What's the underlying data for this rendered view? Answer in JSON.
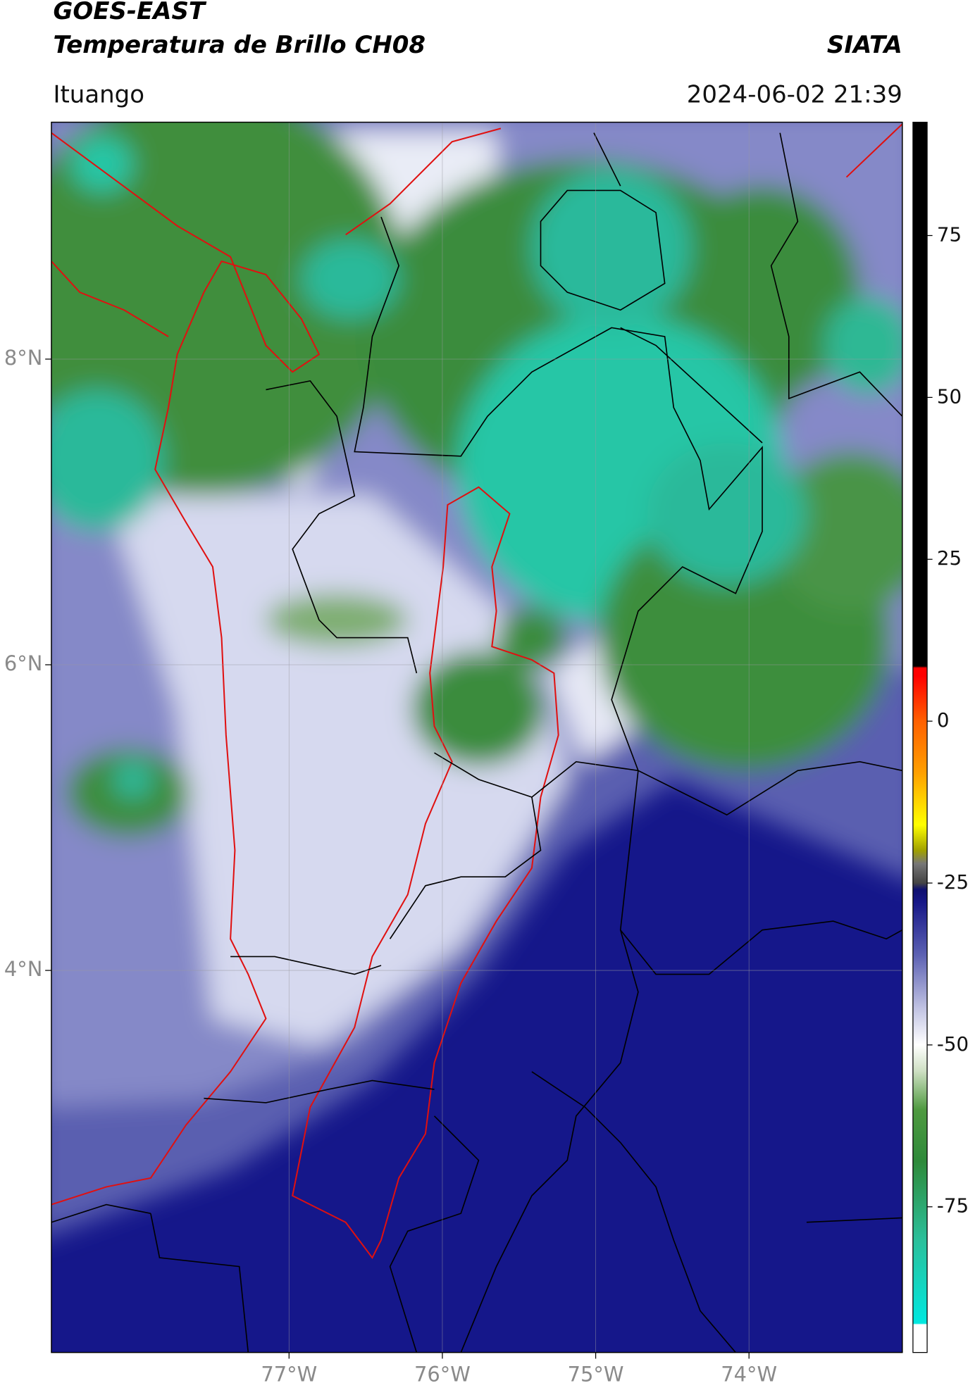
{
  "header": {
    "title": "GOES-EAST",
    "subtitle": "Temperatura de Brillo CH08",
    "brand": "SIATA",
    "location": "Ituango",
    "timestamp": "2024-06-02 21:39"
  },
  "map": {
    "lon_range": [
      -78.55,
      -73.0
    ],
    "lat_range": [
      1.5,
      9.55
    ],
    "lon_ticks": [
      {
        "value": -77,
        "label": "77°W"
      },
      {
        "value": -76,
        "label": "76°W"
      },
      {
        "value": -75,
        "label": "75°W"
      },
      {
        "value": -74,
        "label": "74°W"
      }
    ],
    "lat_ticks": [
      {
        "value": 4,
        "label": "4°N"
      },
      {
        "value": 6,
        "label": "6°N"
      },
      {
        "value": 8,
        "label": "8°N"
      }
    ],
    "grid": true
  },
  "colorbar": {
    "range": [
      -97.5,
      92.5
    ],
    "ticks": [
      -75,
      -50,
      -25,
      0,
      25,
      50,
      75
    ],
    "colormap": [
      [
        -97.5,
        "#ffffff"
      ],
      [
        -93.2,
        "#ffffff"
      ],
      [
        -93,
        "#00e8e0"
      ],
      [
        -80,
        "#2bbf9a"
      ],
      [
        -68,
        "#2e8a3a"
      ],
      [
        -60,
        "#4f9a40"
      ],
      [
        -54,
        "#cfe0c4"
      ],
      [
        -50,
        "#ffffff"
      ],
      [
        -45,
        "#c8cae6"
      ],
      [
        -36,
        "#5b60b2"
      ],
      [
        -28,
        "#171888"
      ],
      [
        -26,
        "#0f1070"
      ],
      [
        -25,
        "#444444"
      ],
      [
        -22,
        "#777777"
      ],
      [
        -20,
        "#a0a000"
      ],
      [
        -16,
        "#ffff00"
      ],
      [
        -8,
        "#ffa000"
      ],
      [
        0,
        "#ff6000"
      ],
      [
        7,
        "#ff0000"
      ],
      [
        8.2,
        "#ff0000"
      ],
      [
        8.5,
        "#000000"
      ],
      [
        92.5,
        "#000000"
      ]
    ]
  }
}
